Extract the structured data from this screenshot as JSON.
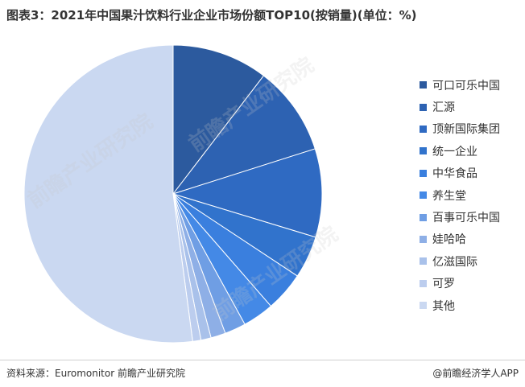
{
  "title": "图表3：2021年中国果汁饮料行业企业市场份额TOP10(按销量)(单位：%)",
  "source": "资料来源：Euromonitor 前瞻产业研究院",
  "brand": "@前瞻经济学人APP",
  "watermark_text": "前瞻产业研究院",
  "chart_data": {
    "type": "pie",
    "title": "2021年中国果汁饮料行业企业市场份额TOP10(按销量)",
    "unit": "%",
    "start_angle": "12 o'clock",
    "direction": "clockwise",
    "legend_position": "right",
    "slices": [
      {
        "label": "可口可乐中国",
        "value": 10.4,
        "color": "#2c5a9e"
      },
      {
        "label": "汇源",
        "value": 9.7,
        "color": "#2d62b2"
      },
      {
        "label": "顶新国际集团",
        "value": 9.6,
        "color": "#2f6ac2"
      },
      {
        "label": "统一企业",
        "value": 4.6,
        "color": "#3173cc"
      },
      {
        "label": "中华食品",
        "value": 4.3,
        "color": "#3a7fde"
      },
      {
        "label": "养生堂",
        "value": 3.4,
        "color": "#4489e6"
      },
      {
        "label": "百事可乐中国",
        "value": 2.3,
        "color": "#6f9ee4"
      },
      {
        "label": "娃哈哈",
        "value": 1.6,
        "color": "#8eafe6"
      },
      {
        "label": "亿滋国际",
        "value": 1.1,
        "color": "#a9c1ea"
      },
      {
        "label": "可罗",
        "value": 0.9,
        "color": "#bccdee"
      },
      {
        "label": "其他",
        "value": 52.1,
        "color": "#cad8f1"
      }
    ]
  }
}
